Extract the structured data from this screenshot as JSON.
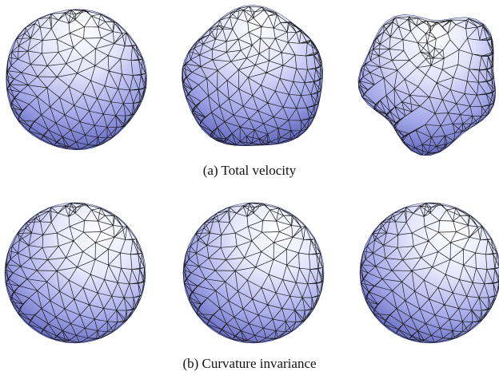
{
  "figure": {
    "captions": {
      "a": "(a) Total velocity",
      "b": "(b) Curvature invariance"
    },
    "colors": {
      "shade_light": "#ffffff",
      "shade_mid": "#aeb2ec",
      "shade_dark": "#4f55b0",
      "mesh_line": "#1a1a1a"
    },
    "panels": [
      {
        "row": "a",
        "column": 1,
        "subject": "remeshed sphere, mild distortion"
      },
      {
        "row": "a",
        "column": 2,
        "subject": "remeshed sphere, moderate distortion"
      },
      {
        "row": "a",
        "column": 3,
        "subject": "remeshed sphere, strong distortion"
      },
      {
        "row": "b",
        "column": 1,
        "subject": "remeshed sphere, uniform mesh"
      },
      {
        "row": "b",
        "column": 2,
        "subject": "remeshed sphere, uniform mesh"
      },
      {
        "row": "b",
        "column": 3,
        "subject": "remeshed sphere, uniform mesh"
      }
    ]
  }
}
